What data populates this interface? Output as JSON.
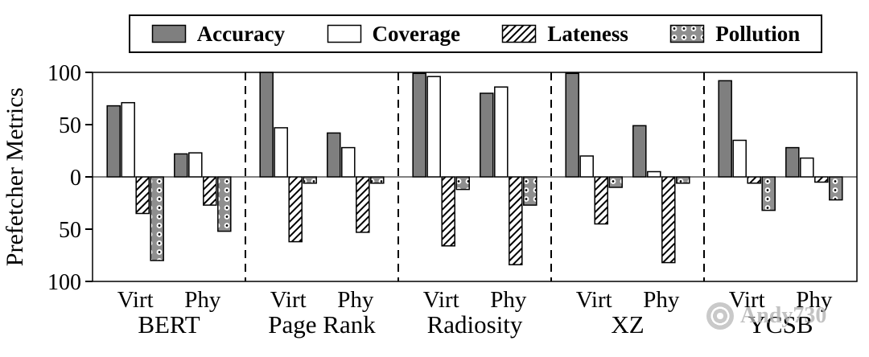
{
  "watermark": {
    "text": "Andy730"
  },
  "chart_data": {
    "type": "bar",
    "title": "",
    "ylabel": "Prefetcher Metrics",
    "xlabel": "",
    "ylim": [
      -100,
      100
    ],
    "yticks": [
      100,
      50,
      0,
      -50,
      -100
    ],
    "ytick_labels": [
      "100",
      "50",
      "0",
      "50",
      "100"
    ],
    "grid": false,
    "legend": [
      "Accuracy",
      "Coverage",
      "Lateness",
      "Pollution"
    ],
    "legend_position": "top",
    "x_sublabels": [
      "Virt",
      "Phy"
    ],
    "colors": {
      "bar_edge": "#000000",
      "axis": "#000000",
      "background": "#ffffff"
    },
    "series_styles": {
      "Accuracy": {
        "fill": "#7f7f7f",
        "pattern": "solid"
      },
      "Coverage": {
        "fill": "#ffffff",
        "pattern": "solid"
      },
      "Lateness": {
        "fill": "#ffffff",
        "pattern": "diagonal-hatch"
      },
      "Pollution": {
        "fill": "#8f8f8f",
        "pattern": "dots"
      }
    },
    "groups": [
      {
        "label": "BERT",
        "clusters": [
          {
            "label": "Virt",
            "values": {
              "Accuracy": 68,
              "Coverage": 71,
              "Lateness": -35,
              "Pollution": -80
            }
          },
          {
            "label": "Phy",
            "values": {
              "Accuracy": 22,
              "Coverage": 23,
              "Lateness": -27,
              "Pollution": -52
            }
          }
        ]
      },
      {
        "label": "Page Rank",
        "clusters": [
          {
            "label": "Virt",
            "values": {
              "Accuracy": 100,
              "Coverage": 47,
              "Lateness": -62,
              "Pollution": -6
            }
          },
          {
            "label": "Phy",
            "values": {
              "Accuracy": 42,
              "Coverage": 28,
              "Lateness": -53,
              "Pollution": -6
            }
          }
        ]
      },
      {
        "label": "Radiosity",
        "clusters": [
          {
            "label": "Virt",
            "values": {
              "Accuracy": 99,
              "Coverage": 96,
              "Lateness": -66,
              "Pollution": -12
            }
          },
          {
            "label": "Phy",
            "values": {
              "Accuracy": 80,
              "Coverage": 86,
              "Lateness": -84,
              "Pollution": -27
            }
          }
        ]
      },
      {
        "label": "XZ",
        "clusters": [
          {
            "label": "Virt",
            "values": {
              "Accuracy": 99,
              "Coverage": 20,
              "Lateness": -45,
              "Pollution": -10
            }
          },
          {
            "label": "Phy",
            "values": {
              "Accuracy": 49,
              "Coverage": 5,
              "Lateness": -82,
              "Pollution": -6
            }
          }
        ]
      },
      {
        "label": "YCSB",
        "clusters": [
          {
            "label": "Virt",
            "values": {
              "Accuracy": 92,
              "Coverage": 35,
              "Lateness": -6,
              "Pollution": -32
            }
          },
          {
            "label": "Phy",
            "values": {
              "Accuracy": 28,
              "Coverage": 18,
              "Lateness": -5,
              "Pollution": -22
            }
          }
        ]
      }
    ]
  }
}
